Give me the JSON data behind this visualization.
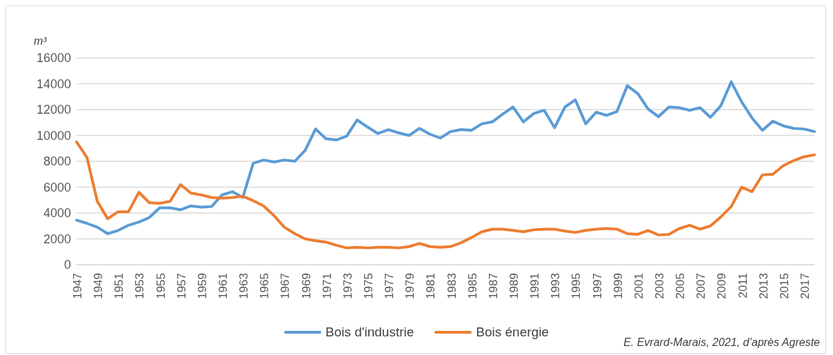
{
  "chart_data": {
    "type": "line",
    "ylabel": "m³",
    "categories": [
      "1947",
      null,
      "1949",
      null,
      "1951",
      null,
      "1953",
      null,
      "1955",
      null,
      "1957",
      null,
      "1959",
      null,
      "1961",
      null,
      "1963",
      null,
      "1965",
      null,
      "1967",
      null,
      "1969",
      null,
      "1971",
      null,
      "1973",
      null,
      "1975",
      null,
      "1977",
      null,
      "1979",
      null,
      "1981",
      null,
      "1983",
      null,
      "1985",
      null,
      "1987",
      null,
      "1989",
      null,
      "1991",
      null,
      "1993",
      null,
      "1995",
      null,
      "1997",
      null,
      "1999",
      null,
      "2001",
      null,
      "2003",
      null,
      "2005",
      null,
      "2007",
      null,
      "2009",
      null,
      "2011",
      null,
      "2013",
      null,
      "2015",
      null,
      "2017",
      null
    ],
    "series": [
      {
        "name": "Bois d'industrie",
        "color": "#5b9bd5",
        "values": [
          3450,
          3200,
          2900,
          2400,
          2650,
          3050,
          3300,
          3650,
          4400,
          4400,
          4250,
          4550,
          4450,
          4500,
          5400,
          5650,
          5200,
          7850,
          8100,
          7950,
          8100,
          8000,
          8850,
          10500,
          9750,
          9650,
          9950,
          11200,
          10650,
          10150,
          10450,
          10200,
          10000,
          10550,
          10100,
          9800,
          10300,
          10450,
          10400,
          10900,
          11050,
          11650,
          12200,
          11050,
          11700,
          11950,
          10600,
          12200,
          12750,
          10900,
          11800,
          11550,
          11850,
          13850,
          13250,
          12050,
          11450,
          12200,
          12150,
          11950,
          12150,
          11400,
          12300,
          14150,
          12600,
          11350,
          10400,
          11100,
          10750,
          10550,
          10500,
          10300
        ]
      },
      {
        "name": "Bois énergie",
        "color": "#ed7d31",
        "values": [
          9500,
          8300,
          4900,
          3550,
          4100,
          4100,
          5600,
          4800,
          4750,
          4900,
          6200,
          5550,
          5400,
          5200,
          5150,
          5200,
          5300,
          4950,
          4550,
          3800,
          2900,
          2400,
          2000,
          1850,
          1750,
          1500,
          1300,
          1350,
          1300,
          1350,
          1350,
          1300,
          1400,
          1650,
          1400,
          1350,
          1400,
          1700,
          2100,
          2550,
          2750,
          2750,
          2650,
          2550,
          2700,
          2750,
          2750,
          2600,
          2500,
          2650,
          2750,
          2800,
          2750,
          2400,
          2350,
          2650,
          2300,
          2350,
          2800,
          3050,
          2750,
          3000,
          3700,
          4500,
          6000,
          5650,
          6950,
          7000,
          7650,
          8050,
          8350,
          8500
        ]
      }
    ],
    "ylim": [
      0,
      16000
    ],
    "yticks": [
      0,
      2000,
      4000,
      6000,
      8000,
      10000,
      12000,
      14000,
      16000
    ],
    "grid": "y",
    "legend": "bottom",
    "marker": "none",
    "line_style": "solid",
    "annotations": [
      "E. Evrard-Marais, 2021, d’après Agreste"
    ]
  }
}
